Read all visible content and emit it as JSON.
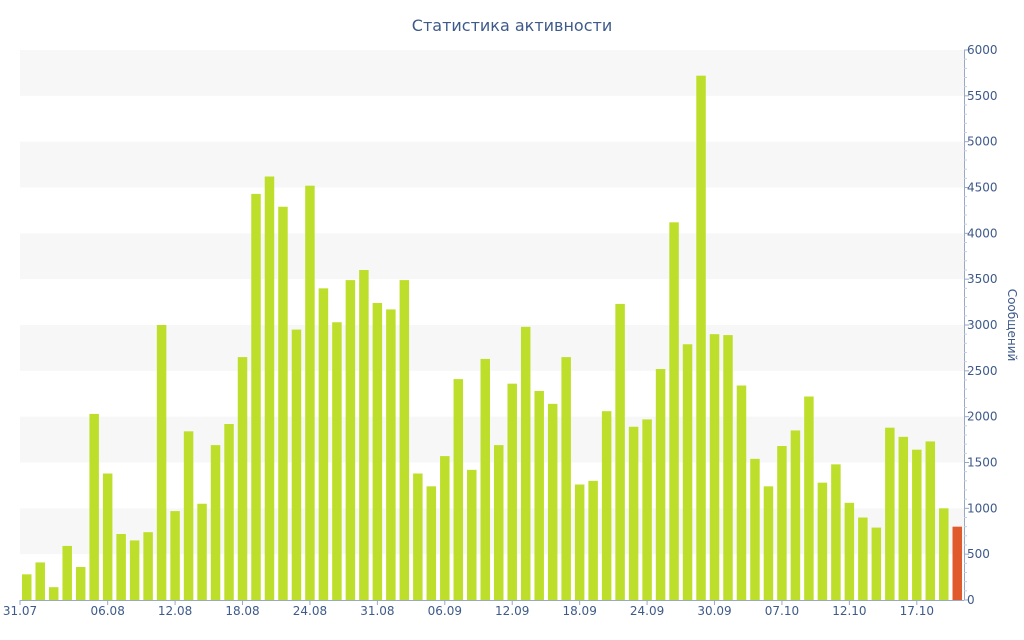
{
  "chart_data": {
    "type": "bar",
    "title": "Статистика активности",
    "xlabel": "",
    "ylabel": "Сообщений",
    "y_axis_position": "right",
    "ylim": [
      0,
      6000
    ],
    "yticks": [
      0,
      500,
      1000,
      1500,
      2000,
      2500,
      3000,
      3500,
      4000,
      4500,
      5000,
      5500,
      6000
    ],
    "xtick_labels": [
      {
        "index": 0,
        "label": "31.07"
      },
      {
        "index": 6,
        "label": "06.08"
      },
      {
        "index": 11,
        "label": "12.08"
      },
      {
        "index": 16,
        "label": "18.08"
      },
      {
        "index": 21,
        "label": "24.08"
      },
      {
        "index": 26,
        "label": "31.08"
      },
      {
        "index": 31,
        "label": "06.09"
      },
      {
        "index": 36,
        "label": "12.09"
      },
      {
        "index": 41,
        "label": "18.09"
      },
      {
        "index": 46,
        "label": "24.09"
      },
      {
        "index": 51,
        "label": "30.09"
      },
      {
        "index": 56,
        "label": "07.10"
      },
      {
        "index": 61,
        "label": "12.10"
      },
      {
        "index": 66,
        "label": "17.10"
      }
    ],
    "values": [
      280,
      410,
      140,
      590,
      360,
      2030,
      1380,
      720,
      650,
      740,
      3000,
      970,
      1840,
      1050,
      1690,
      1920,
      2650,
      4430,
      4620,
      4290,
      2950,
      4520,
      3400,
      3030,
      3490,
      3600,
      3240,
      3170,
      3490,
      1380,
      1240,
      1570,
      2410,
      1420,
      2630,
      1690,
      2360,
      2980,
      2280,
      2140,
      2650,
      1260,
      1300,
      2060,
      3230,
      1890,
      1970,
      2520,
      4120,
      2790,
      5720,
      2900,
      2890,
      2340,
      1540,
      1240,
      1680,
      1850,
      2220,
      1280,
      1480,
      1060,
      900,
      790,
      1880,
      1780,
      1640,
      1730,
      1000,
      800
    ],
    "colors": {
      "bar": "#bddf2b",
      "highlight_bar": "#e05a2b",
      "text": "#3e5a8a",
      "band": "#f7f7f7"
    },
    "grid": "alternating-bands"
  }
}
